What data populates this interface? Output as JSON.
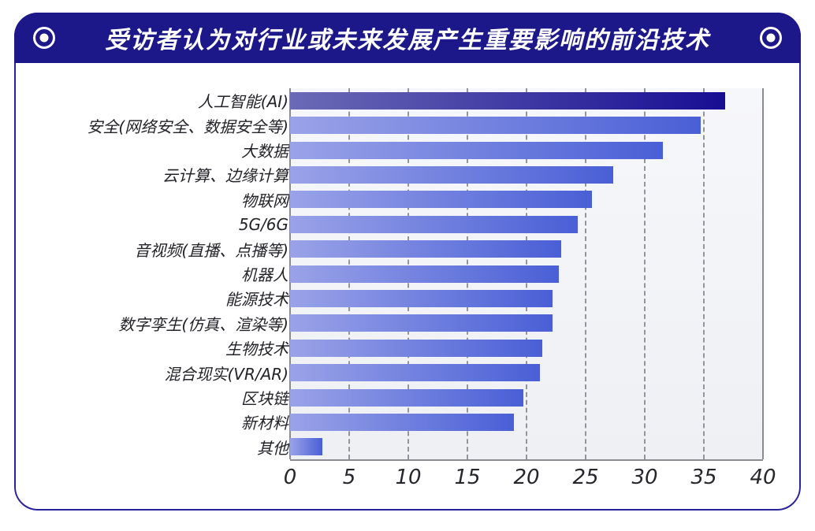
{
  "header": {
    "title": "受访者认为对行业或未来发展产生重要影响的前沿技术",
    "left_icon": "target-icon",
    "right_icon": "target-icon",
    "bg_color": "#1d1889"
  },
  "theme": {
    "card_border": "#2a249a",
    "plot_bg": "#f2f3f7",
    "gridline": "#94949c",
    "axis_line": "#8b8b92",
    "label_color": "#222228",
    "tick_color": "#26262c"
  },
  "chart_data": {
    "type": "bar",
    "orientation": "horizontal",
    "title": "受访者认为对行业或未来发展产生重要影响的前沿技术",
    "categories": [
      "人工智能(AI)",
      "安全(网络安全、数据安全等)",
      "大数据",
      "云计算、边缘计算",
      "物联网",
      "5G/6G",
      "音视频(直播、点播等)",
      "机器人",
      "能源技术",
      "数字孪生(仿真、渲染等)",
      "生物技术",
      "混合现实(VR/AR)",
      "区块链",
      "新材料",
      "其他"
    ],
    "values": [
      36.8,
      34.7,
      31.5,
      27.3,
      25.5,
      24.3,
      22.9,
      22.7,
      22.2,
      22.2,
      21.3,
      21.1,
      19.7,
      18.9,
      2.7
    ],
    "xlim": [
      0,
      40
    ],
    "ticks": [
      0,
      5,
      10,
      15,
      20,
      25,
      30,
      35,
      40
    ],
    "xlabel": "",
    "ylabel": "",
    "grid": "dashed-vertical",
    "legend": "none",
    "colors": {
      "first": [
        "#6b6ab6",
        "#170e93"
      ],
      "default": [
        "#9aa3e8",
        "#4a5fd6"
      ]
    }
  }
}
